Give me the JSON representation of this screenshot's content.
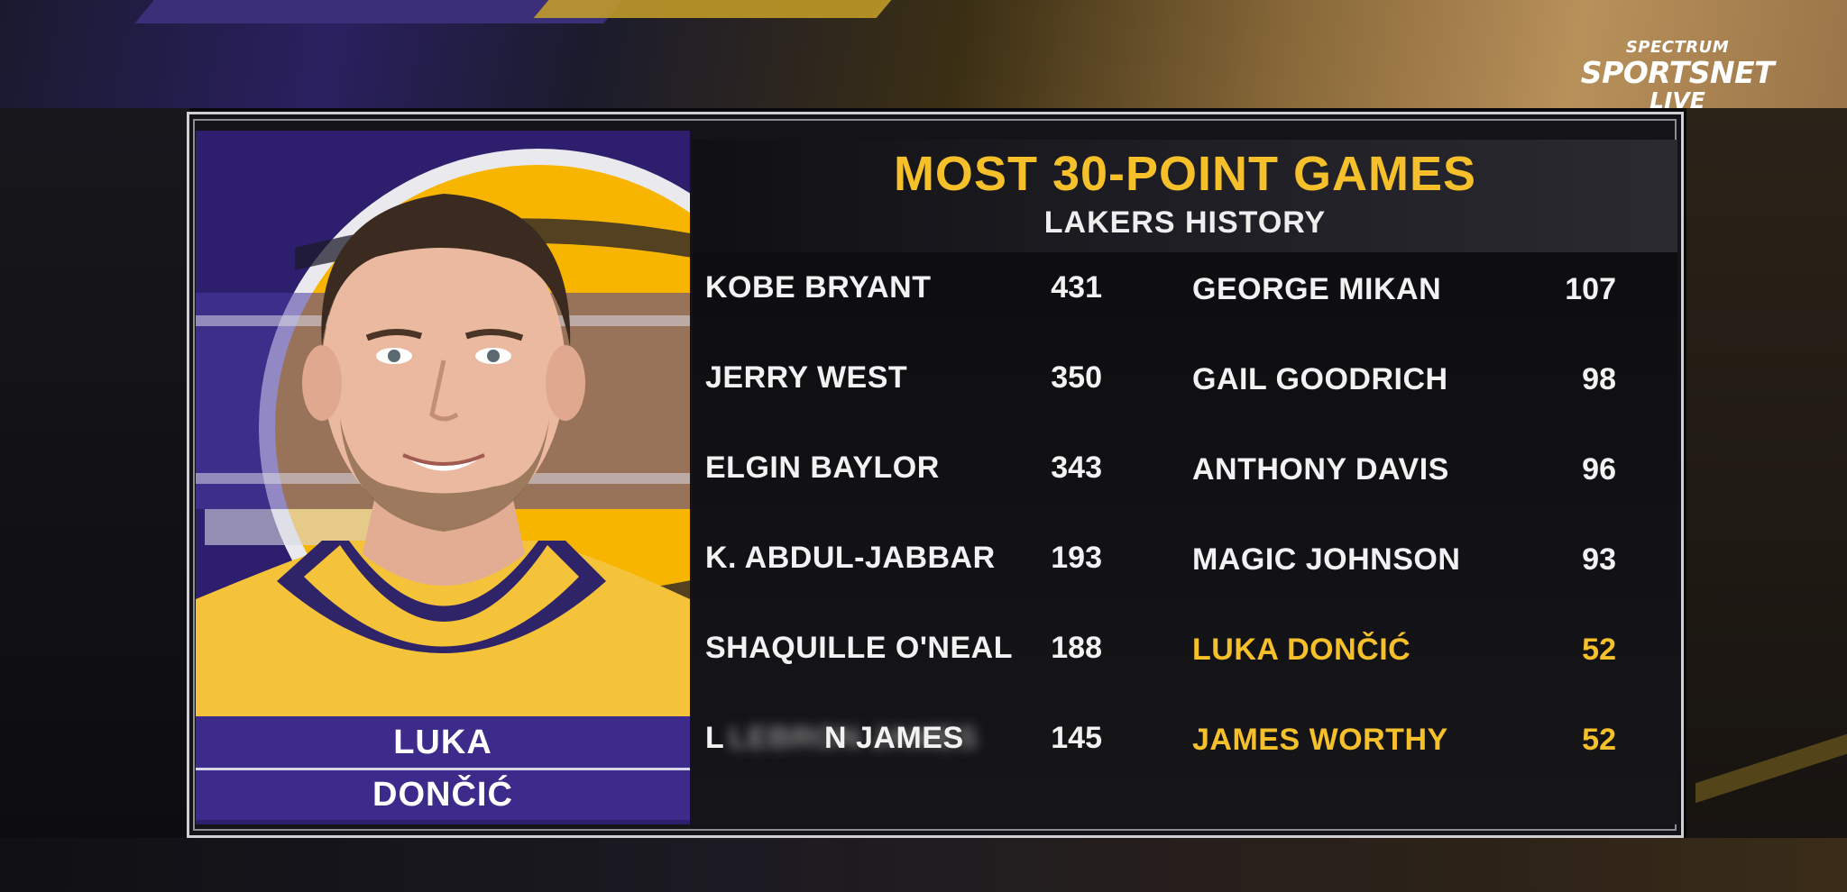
{
  "network": {
    "line1": "SPECTRUM",
    "line2": "SPORTSNET",
    "line3": "LIVE"
  },
  "graphic": {
    "title": "MOST 30-POINT GAMES",
    "subtitle": "LAKERS HISTORY"
  },
  "player": {
    "first_name": "LUKA",
    "last_name": "DONČIĆ"
  },
  "leaders_left": [
    {
      "name": "KOBE BRYANT",
      "value": "431"
    },
    {
      "name": "JERRY WEST",
      "value": "350"
    },
    {
      "name": "ELGIN BAYLOR",
      "value": "343"
    },
    {
      "name": "K. ABDUL-JABBAR",
      "value": "193"
    },
    {
      "name": "SHAQUILLE O'NEAL",
      "value": "188"
    },
    {
      "name": "LEBRON JAMES",
      "name_shown_left": "L",
      "name_shown_right": "N JAMES",
      "value": "145"
    }
  ],
  "leaders_right": [
    {
      "name": "GEORGE MIKAN",
      "value": "107"
    },
    {
      "name": "GAIL GOODRICH",
      "value": "98"
    },
    {
      "name": "ANTHONY DAVIS",
      "value": "96"
    },
    {
      "name": "MAGIC JOHNSON",
      "value": "93"
    },
    {
      "name": "LUKA DONČIĆ",
      "value": "52",
      "highlight": true
    },
    {
      "name": "JAMES WORTHY",
      "value": "52",
      "highlight": true
    }
  ],
  "colors": {
    "highlight": "#f6c02b",
    "lakers_purple": "#3d2b8c",
    "lakers_gold": "#f7b500"
  }
}
